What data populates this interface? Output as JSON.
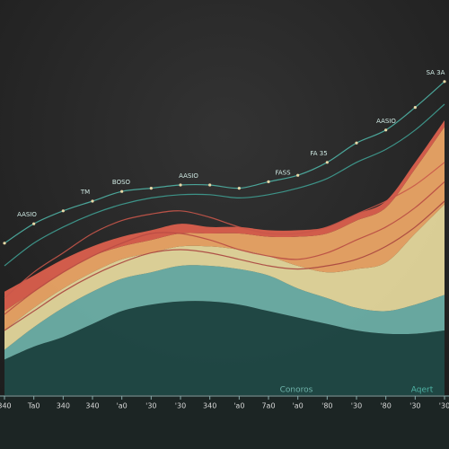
{
  "chart_data": {
    "type": "area",
    "categories": [
      "340",
      "Ta0",
      "340",
      "340",
      "'a0",
      "'30",
      "'30",
      "340",
      "'a0",
      "7a0",
      "'a0",
      "'80",
      "'30",
      "'80",
      "'30",
      "'30"
    ],
    "ylim": [
      0,
      100
    ],
    "series": [
      {
        "color": "#1f4a47",
        "values": [
          11,
          15,
          18,
          22,
          26,
          28,
          29,
          29,
          28,
          26,
          24,
          22,
          20,
          19,
          19,
          20
        ]
      },
      {
        "name": "Conoros",
        "color": "#6fb3aa",
        "values": [
          3,
          6,
          9,
          10,
          10,
          10,
          11,
          11,
          11,
          11,
          9,
          8,
          7,
          7,
          9,
          11
        ]
      },
      {
        "color": "#e9dca0",
        "values": [
          6,
          6,
          6,
          6,
          6,
          6,
          6,
          6,
          6,
          6,
          7,
          8,
          12,
          15,
          22,
          28
        ]
      },
      {
        "color": "#f0a867",
        "values": [
          6,
          5,
          5,
          5,
          4,
          4,
          4,
          4,
          5,
          6,
          9,
          12,
          15,
          17,
          20,
          24
        ]
      },
      {
        "color": "#e0614e",
        "values": [
          6,
          5,
          4,
          3,
          3,
          3,
          3,
          2,
          2,
          2,
          2,
          2,
          2,
          2,
          2,
          2
        ]
      }
    ],
    "lines": [
      {
        "name": "Aqert",
        "color": "#4fb3a5",
        "values": [
          47,
          53,
          57,
          60,
          63,
          64,
          65,
          65,
          64,
          66,
          68,
          72,
          78,
          82,
          89,
          97
        ]
      },
      {
        "color": "#3f9e92",
        "values": [
          40,
          47,
          52,
          56,
          59,
          61,
          62,
          62,
          61,
          62,
          64,
          67,
          72,
          76,
          82,
          90
        ]
      },
      {
        "color": "#c9564a",
        "values": [
          30,
          38,
          44,
          50,
          54,
          56,
          57,
          55,
          52,
          50,
          50,
          52,
          56,
          60,
          65,
          72
        ]
      },
      {
        "color": "#b84a44",
        "values": [
          25,
          32,
          38,
          43,
          47,
          50,
          50,
          48,
          45,
          43,
          42,
          44,
          48,
          52,
          58,
          66
        ]
      },
      {
        "color": "#a8443f",
        "values": [
          20,
          26,
          32,
          37,
          41,
          44,
          45,
          44,
          42,
          40,
          39,
          40,
          42,
          46,
          52,
          60
        ]
      }
    ],
    "annotations": [
      "AASIO",
      "TM",
      "BOSO",
      "AASIO",
      "FASS",
      "FA 35",
      "AASIO",
      "SA 3A"
    ]
  }
}
